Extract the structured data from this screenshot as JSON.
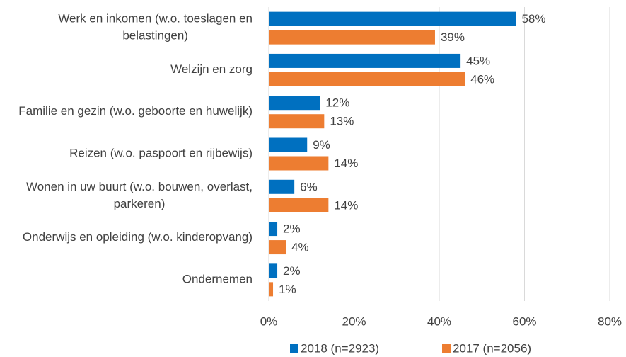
{
  "chart_data": {
    "type": "bar",
    "orientation": "horizontal",
    "categories": [
      "Werk en inkomen (w.o. toeslagen en belastingen)",
      "Welzijn en zorg",
      "Familie en gezin (w.o. geboorte en huwelijk)",
      "Reizen (w.o. paspoort en rijbewijs)",
      "Wonen in uw buurt (w.o. bouwen, overlast, parkeren)",
      "Onderwijs en opleiding (w.o. kinderopvang)",
      "Ondernemen"
    ],
    "series": [
      {
        "name": "2018 (n=2923)",
        "color": "#0070c0",
        "values": [
          58,
          45,
          12,
          9,
          6,
          2,
          2
        ],
        "value_labels": [
          "58%",
          "45%",
          "12%",
          "9%",
          "6%",
          "2%",
          "2%"
        ]
      },
      {
        "name": "2017 (n=2056)",
        "color": "#ed7d31",
        "values": [
          39,
          46,
          13,
          14,
          14,
          4,
          1
        ],
        "value_labels": [
          "39%",
          "46%",
          "13%",
          "14%",
          "14%",
          "4%",
          "1%"
        ]
      }
    ],
    "xlim": [
      0,
      80
    ],
    "xticks": [
      {
        "value": 0,
        "label": "0%"
      },
      {
        "value": 20,
        "label": "20%"
      },
      {
        "value": 40,
        "label": "40%"
      },
      {
        "value": 60,
        "label": "60%"
      },
      {
        "value": 80,
        "label": "80%"
      }
    ],
    "grid": true,
    "legend": "bottom"
  }
}
